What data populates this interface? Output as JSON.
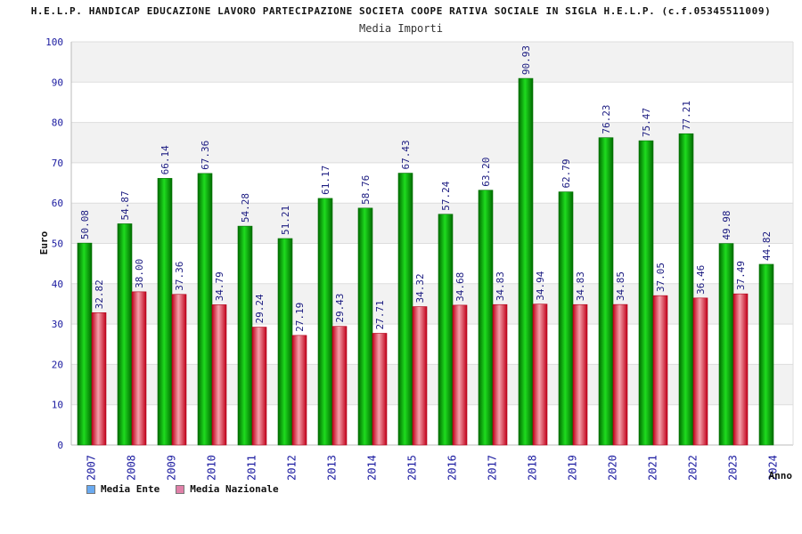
{
  "chart_data": {
    "type": "bar",
    "title": "H.E.L.P. HANDICAP EDUCAZIONE LAVORO PARTECIPAZIONE SOCIETA COOPE RATIVA SOCIALE IN SIGLA H.E.L.P. (c.f.05345511009)",
    "subtitle": "Media Importi",
    "xlabel": "Anno",
    "ylabel": "Euro",
    "ylim": [
      0,
      100
    ],
    "yticks": [
      0,
      10,
      20,
      30,
      40,
      50,
      60,
      70,
      80,
      90,
      100
    ],
    "grid": true,
    "legend_position": "bottom-left",
    "categories": [
      "2007",
      "2008",
      "2009",
      "2010",
      "2011",
      "2012",
      "2013",
      "2014",
      "2015",
      "2016",
      "2017",
      "2018",
      "2019",
      "2020",
      "2021",
      "2022",
      "2023",
      "2024"
    ],
    "series": [
      {
        "name": "Media Ente",
        "color": "#00b000",
        "legend_color": "#6aaaf0",
        "values": [
          50.08,
          54.87,
          66.14,
          67.36,
          54.28,
          51.21,
          61.17,
          58.76,
          67.43,
          57.24,
          63.2,
          90.93,
          62.79,
          76.23,
          75.47,
          77.21,
          49.98,
          44.82
        ],
        "labels": [
          "50.08",
          "54.87",
          "66.14",
          "67.36",
          "54.28",
          "51.21",
          "61.17",
          "58.76",
          "67.43",
          "57.24",
          "63.20",
          "90.93",
          "62.79",
          "76.23",
          "75.47",
          "77.21",
          "49.98",
          "44.82"
        ]
      },
      {
        "name": "Media Nazionale",
        "color": "#e02030",
        "legend_color": "#e080a8",
        "values": [
          32.82,
          38.0,
          37.36,
          34.79,
          29.24,
          27.19,
          29.43,
          27.71,
          34.32,
          34.68,
          34.83,
          34.94,
          34.83,
          34.85,
          37.05,
          36.46,
          37.49,
          null
        ],
        "labels": [
          "32.82",
          "38.00",
          "37.36",
          "34.79",
          "29.24",
          "27.19",
          "29.43",
          "27.71",
          "34.32",
          "34.68",
          "34.83",
          "34.94",
          "34.83",
          "34.85",
          "37.05",
          "36.46",
          "37.49",
          null
        ]
      }
    ]
  }
}
